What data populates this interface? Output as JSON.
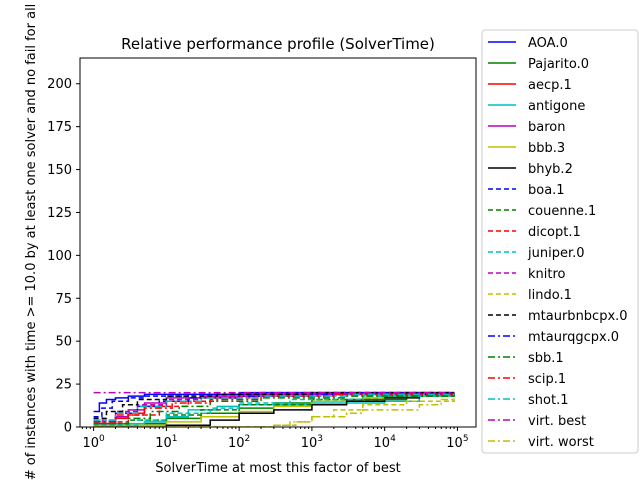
{
  "chart_data": {
    "type": "line",
    "title": "Relative performance profile (SolverTime)",
    "xlabel": "SolverTime at most this factor of best",
    "ylabel": "# of instances with time >= 10.0 by at least one solver and no fail for all",
    "xscale": "log",
    "xlim": [
      0.65,
      180000
    ],
    "ylim": [
      0,
      215
    ],
    "x_ticks": [
      1,
      10,
      100,
      1000,
      10000,
      100000
    ],
    "x_tick_labels": [
      [
        "10",
        "0"
      ],
      [
        "10",
        "1"
      ],
      [
        "10",
        "2"
      ],
      [
        "10",
        "3"
      ],
      [
        "10",
        "4"
      ],
      [
        "10",
        "5"
      ]
    ],
    "y_ticks": [
      0,
      25,
      50,
      75,
      100,
      125,
      150,
      175,
      200
    ],
    "y_tick_labels": [
      "0",
      "25",
      "50",
      "75",
      "100",
      "125",
      "150",
      "175",
      "200"
    ],
    "grid": false,
    "legend_position": "outside-right",
    "series": [
      {
        "name": "AOA.0",
        "color": "#0000ff",
        "dash": "solid",
        "points": [
          [
            1,
            9
          ],
          [
            1.2,
            14
          ],
          [
            1.5,
            16
          ],
          [
            2,
            17
          ],
          [
            3,
            18
          ],
          [
            5,
            19
          ],
          [
            20,
            19
          ],
          [
            100,
            20
          ],
          [
            90000,
            20
          ]
        ]
      },
      {
        "name": "Pajarito.0",
        "color": "#008000",
        "dash": "solid",
        "points": [
          [
            1,
            1
          ],
          [
            5,
            2
          ],
          [
            10,
            5
          ],
          [
            30,
            8
          ],
          [
            100,
            11
          ],
          [
            300,
            14
          ],
          [
            1000,
            15
          ],
          [
            3000,
            16
          ],
          [
            20000,
            19
          ],
          [
            90000,
            20
          ]
        ]
      },
      {
        "name": "aecp.1",
        "color": "#ff0000",
        "dash": "solid",
        "points": [
          [
            1,
            1
          ],
          [
            2,
            5
          ],
          [
            3,
            8
          ],
          [
            5,
            12
          ],
          [
            10,
            15
          ],
          [
            20,
            17
          ],
          [
            100,
            18
          ],
          [
            1000,
            19
          ],
          [
            90000,
            20
          ]
        ]
      },
      {
        "name": "antigone",
        "color": "#00bfbf",
        "dash": "solid",
        "points": [
          [
            1,
            2
          ],
          [
            5,
            3
          ],
          [
            10,
            6
          ],
          [
            20,
            10
          ],
          [
            50,
            12
          ],
          [
            100,
            13
          ],
          [
            1000,
            14
          ],
          [
            10000,
            15
          ],
          [
            30000,
            18
          ],
          [
            90000,
            19
          ]
        ]
      },
      {
        "name": "baron",
        "color": "#bf00bf",
        "dash": "solid",
        "points": [
          [
            1,
            2
          ],
          [
            2,
            6
          ],
          [
            3,
            10
          ],
          [
            5,
            14
          ],
          [
            10,
            17
          ],
          [
            30,
            18
          ],
          [
            100,
            19
          ],
          [
            90000,
            20
          ]
        ]
      },
      {
        "name": "bbb.3",
        "color": "#bfbf00",
        "dash": "solid",
        "points": [
          [
            1,
            1
          ],
          [
            10,
            3
          ],
          [
            30,
            6
          ],
          [
            100,
            9
          ],
          [
            300,
            12
          ],
          [
            1000,
            15
          ],
          [
            5000,
            17
          ],
          [
            20000,
            18
          ],
          [
            90000,
            19
          ]
        ]
      },
      {
        "name": "bhyb.2",
        "color": "#000000",
        "dash": "solid",
        "points": [
          [
            1,
            0
          ],
          [
            10,
            1
          ],
          [
            40,
            4
          ],
          [
            100,
            8
          ],
          [
            300,
            10
          ],
          [
            1000,
            13
          ],
          [
            3000,
            15
          ],
          [
            10000,
            17
          ],
          [
            30000,
            19
          ],
          [
            90000,
            20
          ]
        ]
      },
      {
        "name": "boa.1",
        "color": "#0000ff",
        "dash": "dashed",
        "points": [
          [
            1,
            6
          ],
          [
            1.3,
            11
          ],
          [
            1.8,
            15
          ],
          [
            3,
            17
          ],
          [
            5,
            18
          ],
          [
            20,
            19
          ],
          [
            200,
            20
          ],
          [
            90000,
            20
          ]
        ]
      },
      {
        "name": "couenne.1",
        "color": "#008000",
        "dash": "dashed",
        "points": [
          [
            1,
            2
          ],
          [
            3,
            4
          ],
          [
            10,
            7
          ],
          [
            30,
            10
          ],
          [
            100,
            13
          ],
          [
            1000,
            16
          ],
          [
            10000,
            18
          ],
          [
            90000,
            19
          ]
        ]
      },
      {
        "name": "dicopt.1",
        "color": "#ff0000",
        "dash": "dashed",
        "points": [
          [
            1,
            3
          ],
          [
            3,
            7
          ],
          [
            8,
            12
          ],
          [
            20,
            15
          ],
          [
            50,
            17
          ],
          [
            200,
            18
          ],
          [
            2000,
            19
          ],
          [
            90000,
            20
          ]
        ]
      },
      {
        "name": "juniper.0",
        "color": "#00bfbf",
        "dash": "dashed",
        "points": [
          [
            1,
            1
          ],
          [
            4,
            4
          ],
          [
            10,
            8
          ],
          [
            40,
            11
          ],
          [
            100,
            14
          ],
          [
            500,
            16
          ],
          [
            5000,
            18
          ],
          [
            90000,
            19
          ]
        ]
      },
      {
        "name": "knitro",
        "color": "#bf00bf",
        "dash": "dashed",
        "points": [
          [
            1,
            4
          ],
          [
            2,
            9
          ],
          [
            4,
            13
          ],
          [
            10,
            16
          ],
          [
            30,
            18
          ],
          [
            300,
            19
          ],
          [
            90000,
            20
          ]
        ]
      },
      {
        "name": "lindo.1",
        "color": "#bfbf00",
        "dash": "dashed",
        "points": [
          [
            1,
            0
          ],
          [
            100,
            0
          ],
          [
            300,
            1
          ],
          [
            600,
            3
          ],
          [
            1000,
            6
          ],
          [
            2000,
            10
          ],
          [
            5000,
            13
          ],
          [
            20000,
            15
          ],
          [
            90000,
            17
          ]
        ]
      },
      {
        "name": "mtaurbnbcpx.0",
        "color": "#000000",
        "dash": "dashed",
        "points": [
          [
            1,
            5
          ],
          [
            1.5,
            9
          ],
          [
            2.5,
            13
          ],
          [
            4,
            16
          ],
          [
            10,
            18
          ],
          [
            50,
            19
          ],
          [
            1000,
            20
          ],
          [
            90000,
            20
          ]
        ]
      },
      {
        "name": "mtaurqgcpx.0",
        "color": "#0000ff",
        "dash": "dashdot",
        "points": [
          [
            1,
            3
          ],
          [
            2,
            8
          ],
          [
            4,
            12
          ],
          [
            8,
            15
          ],
          [
            20,
            17
          ],
          [
            100,
            18
          ],
          [
            1000,
            19
          ],
          [
            90000,
            20
          ]
        ]
      },
      {
        "name": "sbb.1",
        "color": "#008000",
        "dash": "dashdot",
        "points": [
          [
            1,
            2
          ],
          [
            3,
            5
          ],
          [
            6,
            9
          ],
          [
            15,
            12
          ],
          [
            40,
            15
          ],
          [
            200,
            17
          ],
          [
            3000,
            18
          ],
          [
            90000,
            19
          ]
        ]
      },
      {
        "name": "scip.1",
        "color": "#ff0000",
        "dash": "dashdot",
        "points": [
          [
            1,
            3
          ],
          [
            2,
            7
          ],
          [
            5,
            11
          ],
          [
            12,
            14
          ],
          [
            40,
            16
          ],
          [
            200,
            18
          ],
          [
            2000,
            19
          ],
          [
            90000,
            20
          ]
        ]
      },
      {
        "name": "shot.1",
        "color": "#00bfbf",
        "dash": "dashdot",
        "points": [
          [
            1,
            4
          ],
          [
            2,
            8
          ],
          [
            4,
            12
          ],
          [
            10,
            15
          ],
          [
            30,
            17
          ],
          [
            200,
            18
          ],
          [
            3000,
            19
          ],
          [
            90000,
            20
          ]
        ]
      },
      {
        "name": "virt. best",
        "color": "#bf00bf",
        "dash": "dashdot",
        "points": [
          [
            1,
            20
          ],
          [
            90000,
            20
          ]
        ]
      },
      {
        "name": "virt. worst",
        "color": "#bfbf00",
        "dash": "dashdot",
        "points": [
          [
            1,
            0
          ],
          [
            200,
            0
          ],
          [
            300,
            1
          ],
          [
            500,
            3
          ],
          [
            1000,
            6
          ],
          [
            3000,
            8
          ],
          [
            5000,
            10
          ],
          [
            15000,
            10
          ],
          [
            30000,
            13
          ],
          [
            60000,
            16
          ],
          [
            90000,
            16
          ]
        ]
      }
    ]
  }
}
